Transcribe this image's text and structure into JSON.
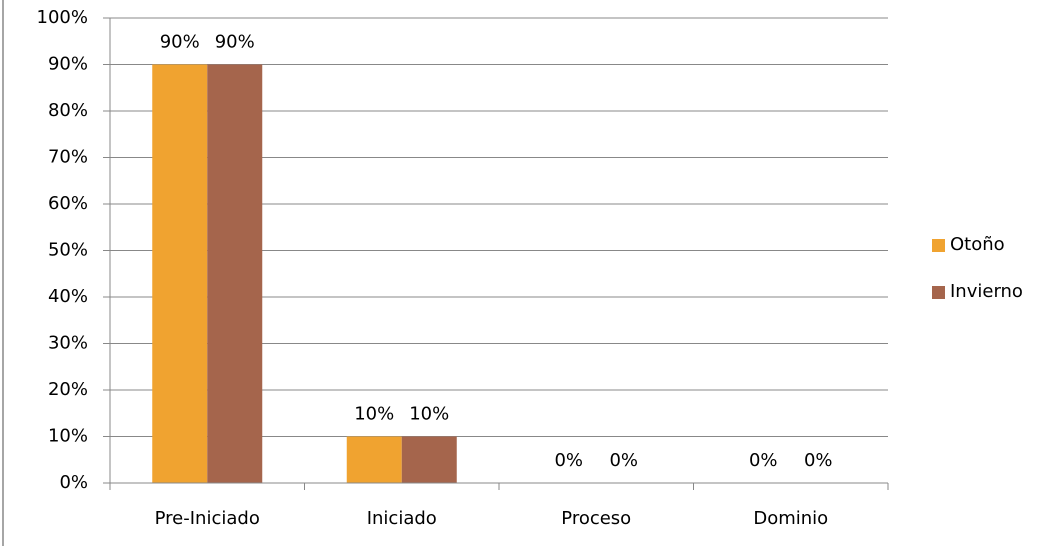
{
  "chart_data": {
    "type": "bar",
    "categories": [
      "Pre-Iniciado",
      "Iniciado",
      "Proceso",
      "Dominio"
    ],
    "series": [
      {
        "name": "Otoño",
        "color": "#f0a330",
        "values": [
          90,
          10,
          0,
          0
        ],
        "value_labels": [
          "90%",
          "10%",
          "0%",
          "0%"
        ]
      },
      {
        "name": "Invierno",
        "color": "#a5654c",
        "values": [
          90,
          10,
          0,
          0
        ],
        "value_labels": [
          "90%",
          "10%",
          "0%",
          "0%"
        ]
      }
    ],
    "ylim": [
      0,
      100
    ],
    "yticks": [
      {
        "value": 0,
        "label": "0%"
      },
      {
        "value": 10,
        "label": "10%"
      },
      {
        "value": 20,
        "label": "20%"
      },
      {
        "value": 30,
        "label": "30%"
      },
      {
        "value": 40,
        "label": "40%"
      },
      {
        "value": 50,
        "label": "50%"
      },
      {
        "value": 60,
        "label": "60%"
      },
      {
        "value": 70,
        "label": "70%"
      },
      {
        "value": 80,
        "label": "80%"
      },
      {
        "value": 90,
        "label": "90%"
      },
      {
        "value": 100,
        "label": "100%"
      }
    ],
    "grid": true,
    "legend": "right"
  }
}
